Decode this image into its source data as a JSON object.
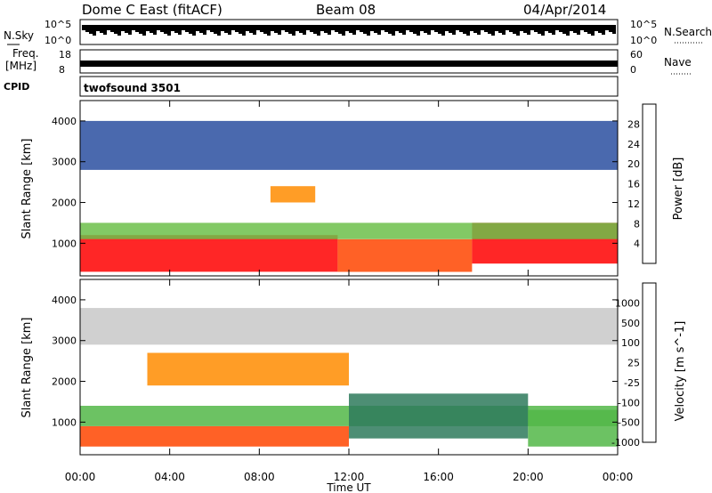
{
  "header": {
    "station": "Dome C East (fitACF)",
    "beam": "Beam 08",
    "date": "04/Apr/2014"
  },
  "noise_panel": {
    "left_label": "N.Sky",
    "left_ticks": [
      "10^5",
      "10^0"
    ],
    "right_label": "N.Search",
    "right_ticks": [
      "10^5",
      "10^0"
    ]
  },
  "freq_panel": {
    "left_label_1": "Freq.",
    "left_label_2": "[MHz]",
    "left_ticks": [
      "18",
      "8"
    ],
    "right_label": "Nave",
    "right_ticks": [
      "60",
      "0"
    ]
  },
  "cpid_panel": {
    "label": "CPID",
    "text": "twofsound 3501"
  },
  "colors": {
    "power": [
      "#1a1aff",
      "#2a4fa0",
      "#2e8b57",
      "#6cc04a",
      "#f5c400",
      "#ff8c00",
      "#ff4500",
      "#ff0000"
    ],
    "velocity": [
      "#2747a8",
      "#2e7a5c",
      "#52b748",
      "#c8c8c8",
      "#d8d8d8",
      "#ff8c00",
      "#ff4500",
      "#ff0000"
    ]
  },
  "chart_data": [
    {
      "type": "heatmap",
      "name": "power",
      "ylabel": "Slant Range [km]",
      "ylim": [
        200,
        4500
      ],
      "yticks": [
        1000,
        2000,
        3000,
        4000
      ],
      "xlim": [
        0,
        24
      ],
      "xticks": [
        0,
        4,
        8,
        12,
        16,
        20,
        24
      ],
      "colorbar_label": "Power [dB]",
      "colorbar_ticks": [
        "28",
        "24",
        "20",
        "16",
        "12",
        "8",
        "4"
      ],
      "bands": [
        {
          "t0": 0,
          "t1": 11.5,
          "r0": 300,
          "r1": 1200,
          "level": 7
        },
        {
          "t0": 11.5,
          "t1": 17.5,
          "r0": 300,
          "r1": 1100,
          "level": 6
        },
        {
          "t0": 17.5,
          "t1": 24,
          "r0": 500,
          "r1": 1500,
          "level": 7
        },
        {
          "t0": 0,
          "t1": 24,
          "r0": 1100,
          "r1": 1500,
          "level": 3
        },
        {
          "t0": 8.5,
          "t1": 10.5,
          "r0": 2000,
          "r1": 2400,
          "level": 5
        },
        {
          "t0": 0,
          "t1": 24,
          "r0": 2800,
          "r1": 4000,
          "level": 1
        }
      ]
    },
    {
      "type": "heatmap",
      "name": "velocity",
      "ylabel": "Slant Range [km]",
      "xlabel": "Time UT",
      "ylim": [
        200,
        4500
      ],
      "yticks": [
        1000,
        2000,
        3000,
        4000
      ],
      "xlim": [
        0,
        24
      ],
      "xticks": [
        0,
        4,
        8,
        12,
        16,
        20,
        24
      ],
      "xticklabels": [
        "00:00",
        "04:00",
        "08:00",
        "12:00",
        "16:00",
        "20:00",
        "00:00"
      ],
      "colorbar_label": "Velocity [m s^-1]",
      "colorbar_ticks": [
        "1000",
        "500",
        "100",
        "25",
        "-25",
        "-100",
        "-500",
        "-1000"
      ],
      "bands": [
        {
          "t0": 0,
          "t1": 12,
          "r0": 400,
          "r1": 900,
          "level": 6
        },
        {
          "t0": 0,
          "t1": 24,
          "r0": 900,
          "r1": 1400,
          "level": 2
        },
        {
          "t0": 12,
          "t1": 20,
          "r0": 600,
          "r1": 1700,
          "level": 1
        },
        {
          "t0": 20,
          "t1": 24,
          "r0": 400,
          "r1": 1300,
          "level": 2
        },
        {
          "t0": 3,
          "t1": 12,
          "r0": 1900,
          "r1": 2700,
          "level": 5
        },
        {
          "t0": 0,
          "t1": 24,
          "r0": 2900,
          "r1": 3800,
          "level": 3
        }
      ]
    }
  ]
}
